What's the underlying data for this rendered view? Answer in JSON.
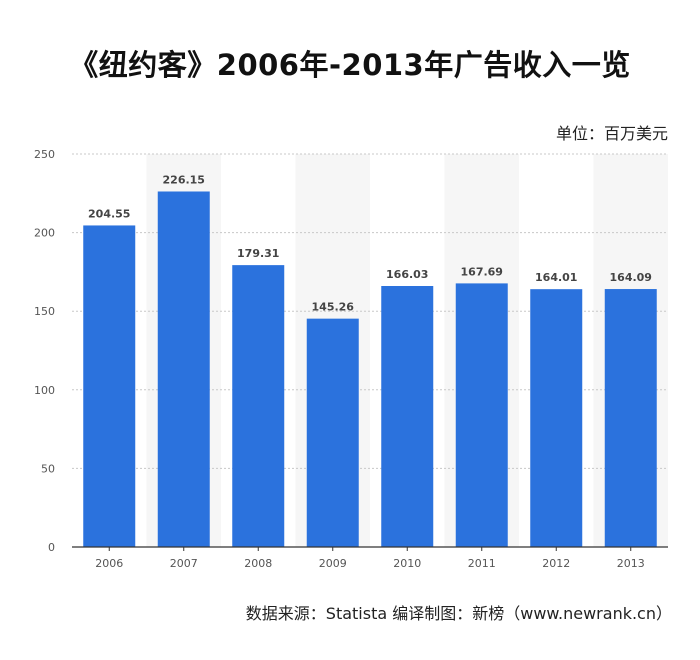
{
  "title": "《纽约客》2006年-2013年广告收入一览",
  "unit_label": "单位：百万美元",
  "source": "数据来源：Statista    编译制图：新榜（www.newrank.cn）",
  "colors": {
    "bar": "#2b72dd",
    "band": "#f6f6f6",
    "grid": "#c8c8c8"
  },
  "chart_data": {
    "type": "bar",
    "title": "《纽约客》2006年-2013年广告收入一览",
    "xlabel": "",
    "ylabel": "",
    "categories": [
      "2006",
      "2007",
      "2008",
      "2009",
      "2010",
      "2011",
      "2012",
      "2013"
    ],
    "values": [
      204.55,
      226.15,
      179.31,
      145.26,
      166.03,
      167.69,
      164.01,
      164.09
    ],
    "data_labels": [
      "204.55",
      "226.15",
      "179.31",
      "145.26",
      "166.03",
      "167.69",
      "164.01",
      "164.09"
    ],
    "ylim": [
      0,
      250
    ],
    "yticks": [
      "0",
      "50",
      "100",
      "150",
      "200",
      "250"
    ],
    "grid": true,
    "legend": "none"
  }
}
